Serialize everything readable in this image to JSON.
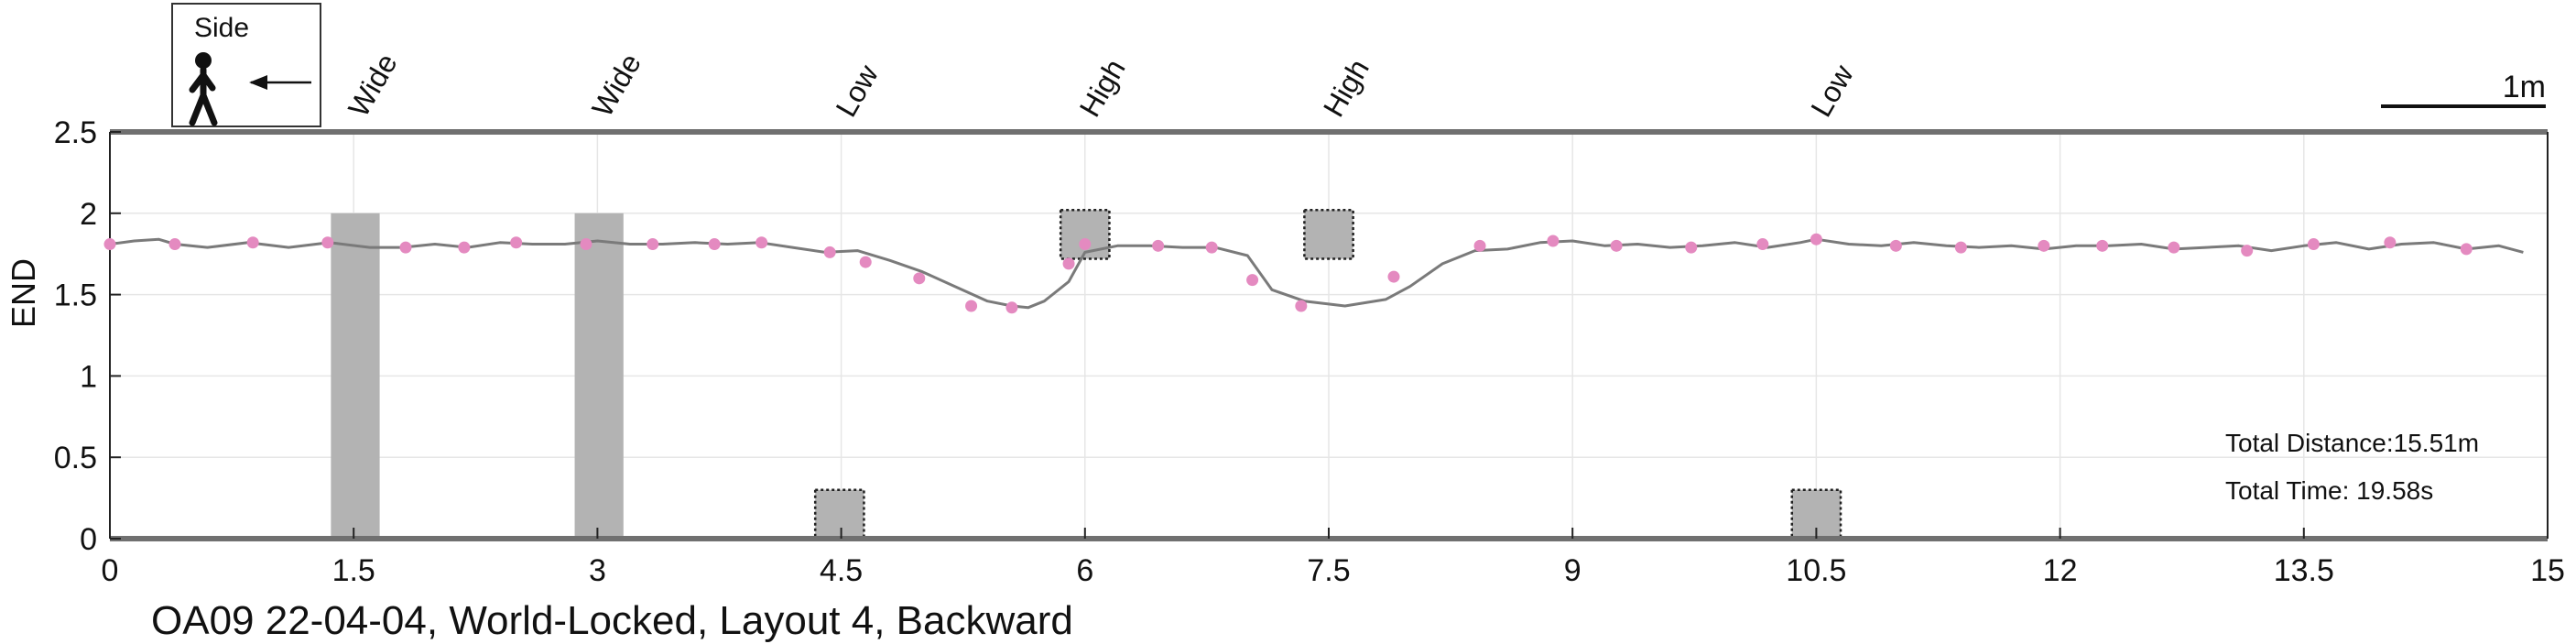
{
  "chart_data": {
    "type": "line",
    "title": "OA09 22-04-04, World-Locked, Layout 4, Backward",
    "ylabel": "END",
    "xlabel": "",
    "xlim": [
      0,
      15
    ],
    "ylim": [
      0,
      2.5
    ],
    "grid": true,
    "x_ticks": [
      "0",
      "1.5",
      "3",
      "4.5",
      "6",
      "7.5",
      "9",
      "10.5",
      "12",
      "13.5",
      "15"
    ],
    "y_ticks": [
      "0",
      "0.5",
      "1",
      "1.5",
      "2",
      "2.5"
    ],
    "series": [
      {
        "line_color": "#7a7a7a",
        "marker_color": "#e48ac0",
        "x": [
          0.0,
          0.15,
          0.3,
          0.4,
          0.6,
          0.85,
          1.1,
          1.35,
          1.6,
          1.8,
          2.0,
          2.2,
          2.4,
          2.6,
          2.8,
          3.0,
          3.2,
          3.4,
          3.6,
          3.8,
          4.0,
          4.2,
          4.4,
          4.6,
          4.8,
          5.0,
          5.2,
          5.4,
          5.55,
          5.65,
          5.75,
          5.9,
          6.0,
          6.2,
          6.4,
          6.6,
          6.8,
          7.0,
          7.15,
          7.35,
          7.6,
          7.85,
          8.0,
          8.2,
          8.4,
          8.6,
          8.8,
          9.0,
          9.2,
          9.4,
          9.6,
          9.8,
          10.0,
          10.2,
          10.4,
          10.5,
          10.7,
          10.9,
          11.1,
          11.3,
          11.5,
          11.7,
          11.9,
          12.1,
          12.3,
          12.5,
          12.7,
          12.9,
          13.1,
          13.3,
          13.5,
          13.7,
          13.9,
          14.1,
          14.3,
          14.5,
          14.7,
          14.85
        ],
        "y": [
          1.81,
          1.83,
          1.84,
          1.81,
          1.79,
          1.82,
          1.79,
          1.82,
          1.79,
          1.79,
          1.81,
          1.79,
          1.82,
          1.81,
          1.81,
          1.83,
          1.81,
          1.81,
          1.82,
          1.81,
          1.82,
          1.79,
          1.76,
          1.77,
          1.71,
          1.64,
          1.55,
          1.46,
          1.43,
          1.42,
          1.46,
          1.58,
          1.76,
          1.8,
          1.8,
          1.79,
          1.79,
          1.74,
          1.53,
          1.46,
          1.43,
          1.47,
          1.55,
          1.69,
          1.77,
          1.78,
          1.82,
          1.83,
          1.8,
          1.81,
          1.79,
          1.8,
          1.82,
          1.79,
          1.82,
          1.84,
          1.81,
          1.8,
          1.82,
          1.8,
          1.79,
          1.8,
          1.78,
          1.8,
          1.8,
          1.81,
          1.78,
          1.79,
          1.8,
          1.77,
          1.8,
          1.82,
          1.78,
          1.81,
          1.82,
          1.78,
          1.8,
          1.76
        ]
      }
    ],
    "markers": {
      "x": [
        0.0,
        0.4,
        0.88,
        1.34,
        1.82,
        2.18,
        2.5,
        2.93,
        3.34,
        3.72,
        4.01,
        4.43,
        4.65,
        4.98,
        5.3,
        5.55,
        5.9,
        6.0,
        6.45,
        6.78,
        7.03,
        7.33,
        7.9,
        8.43,
        8.88,
        9.27,
        9.73,
        10.17,
        10.5,
        10.99,
        11.39,
        11.9,
        12.26,
        12.7,
        13.15,
        13.56,
        14.03,
        14.5
      ],
      "y": [
        1.81,
        1.81,
        1.82,
        1.82,
        1.79,
        1.79,
        1.82,
        1.81,
        1.81,
        1.81,
        1.82,
        1.76,
        1.7,
        1.6,
        1.43,
        1.42,
        1.69,
        1.81,
        1.8,
        1.79,
        1.59,
        1.43,
        1.61,
        1.8,
        1.83,
        1.8,
        1.79,
        1.81,
        1.84,
        1.8,
        1.79,
        1.8,
        1.8,
        1.79,
        1.77,
        1.81,
        1.82,
        1.78
      ]
    },
    "obstacles": [
      {
        "label": "Wide",
        "x0": 1.36,
        "x1": 1.66,
        "y0": 0,
        "y1": 2.0,
        "style": "solid",
        "label_x": 1.5
      },
      {
        "label": "Wide",
        "x0": 2.86,
        "x1": 3.16,
        "y0": 0,
        "y1": 2.0,
        "style": "solid",
        "label_x": 3.0
      },
      {
        "label": "Low",
        "x0": 4.34,
        "x1": 4.64,
        "y0": 0,
        "y1": 0.3,
        "style": "dotted",
        "label_x": 4.5
      },
      {
        "label": "High",
        "x0": 5.85,
        "x1": 6.15,
        "y0": 1.72,
        "y1": 2.02,
        "style": "dotted",
        "label_x": 6.0
      },
      {
        "label": "High",
        "x0": 7.35,
        "x1": 7.65,
        "y0": 1.72,
        "y1": 2.02,
        "style": "dotted",
        "label_x": 7.5
      },
      {
        "label": "Low",
        "x0": 10.35,
        "x1": 10.65,
        "y0": 0,
        "y1": 0.3,
        "style": "dotted",
        "label_x": 10.5
      }
    ],
    "annotations": {
      "total_distance": "Total Distance:15.51m",
      "total_time": "Total Time: 19.58s",
      "scale_bar": "1m",
      "legend_label": "Side"
    },
    "colors": {
      "axis": "#707070",
      "grid": "#e6e6e6",
      "obstacle": "#b3b3b3"
    }
  }
}
